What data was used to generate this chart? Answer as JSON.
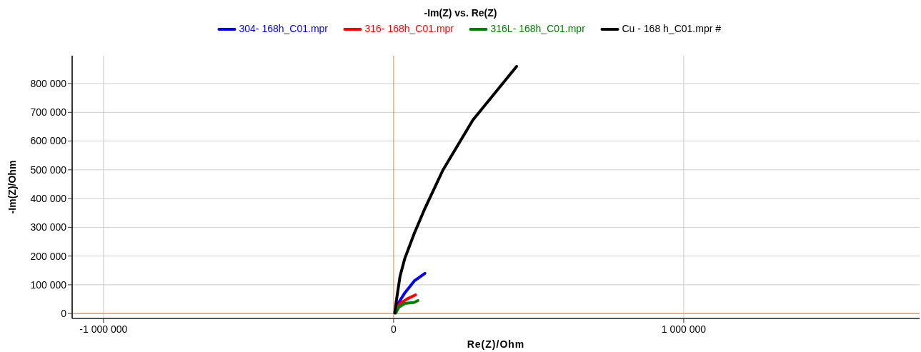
{
  "chart_data": {
    "type": "line",
    "title": "-Im(Z) vs. Re(Z)",
    "xlabel": "Re(Z)/Ohm",
    "ylabel": "-Im(Z)/Ohm",
    "xlim": [
      -1108000,
      1813000
    ],
    "ylim": [
      -17000,
      897000
    ],
    "xticks": [
      {
        "value": -1000000,
        "label": "-1 000 000"
      },
      0,
      {
        "value": 1000000,
        "label": "1 000 000"
      }
    ],
    "yticks": [
      0,
      {
        "value": 100000,
        "label": "100 000"
      },
      {
        "value": 200000,
        "label": "200 000"
      },
      {
        "value": 300000,
        "label": "300 000"
      },
      {
        "value": 400000,
        "label": "400 000"
      },
      {
        "value": 500000,
        "label": "500 000"
      },
      {
        "value": 600000,
        "label": "600 000"
      },
      {
        "value": 700000,
        "label": "700 000"
      },
      {
        "value": 800000,
        "label": "800 000"
      }
    ],
    "grid": true,
    "legend": "top",
    "marker": "none",
    "line_style": "solid",
    "ref_lines": [
      {
        "axis": "x",
        "value": 0,
        "color": "#d08a3c"
      },
      {
        "axis": "y",
        "value": 0,
        "color": "#f08020"
      }
    ],
    "series": [
      {
        "name": "304- 168h_C01.mpr",
        "color": "#0000ff",
        "x": [
          4200,
          18000,
          38700,
          71400,
          108000
        ],
        "values": [
          5700,
          39000,
          72000,
          113500,
          140000
        ]
      },
      {
        "name": "316- 168h_C01.mpr",
        "color": "#ff0000",
        "x": [
          5700,
          22000,
          46800,
          75600
        ],
        "values": [
          5700,
          35000,
          51000,
          65000
        ]
      },
      {
        "name": "316L- 168h_C01.mpr",
        "color": "#008000",
        "x": [
          7400,
          18000,
          38700,
          71400,
          83700
        ],
        "values": [
          1700,
          22000,
          35000,
          39000,
          45000
        ]
      },
      {
        "name": "Cu - 168 h_C01.mpr #",
        "color": "#000000",
        "x": [
          4200,
          9900,
          22000,
          38700,
          71400,
          108000,
          170000,
          273000,
          424000
        ],
        "values": [
          1700,
          47000,
          129000,
          192000,
          279000,
          366000,
          499000,
          673000,
          860000
        ]
      }
    ]
  }
}
